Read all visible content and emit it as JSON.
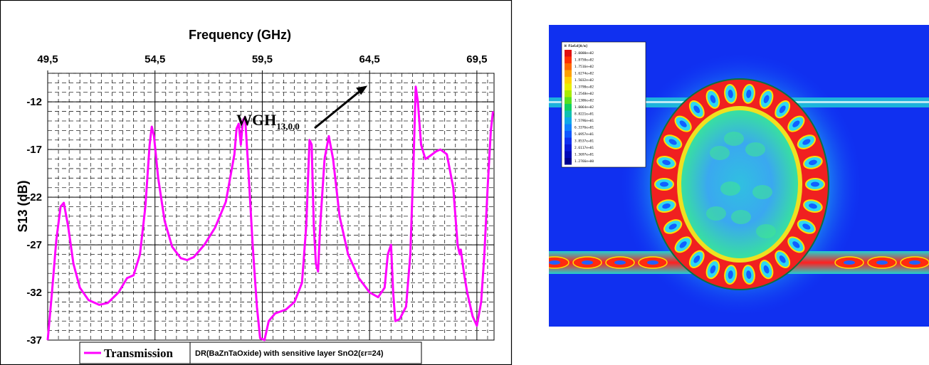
{
  "chart_data": {
    "type": "line",
    "xlabel": "Frequency (GHz)",
    "ylabel": "S13 (dB)",
    "xlim": [
      49.5,
      70.3
    ],
    "ylim": [
      -37,
      -9
    ],
    "x_ticks": [
      "49,5",
      "54,5",
      "59,5",
      "64,5",
      "69,5"
    ],
    "x_tick_values": [
      49.5,
      54.5,
      59.5,
      64.5,
      69.5
    ],
    "y_ticks": [
      "-12",
      "-17",
      "-22",
      "-27",
      "-32",
      "-37"
    ],
    "y_tick_values": [
      -12,
      -17,
      -22,
      -27,
      -32,
      -37
    ],
    "x_axis_position": "top",
    "grid": true,
    "legend": {
      "entry": "Transmission",
      "placement": "bottom-left"
    },
    "caption": "DR(BaZnTaOxide)  with sensitive layer SnO2(εr=24)",
    "annotation": {
      "main": "WGH",
      "sub": "13,0,0",
      "x": 64.4,
      "y": -10.3
    },
    "series": [
      {
        "name": "Transmission",
        "color": "#ff00ff",
        "points": [
          [
            49.5,
            -37
          ],
          [
            49.7,
            -32
          ],
          [
            49.9,
            -26.5
          ],
          [
            50.1,
            -23
          ],
          [
            50.25,
            -22.6
          ],
          [
            50.45,
            -25
          ],
          [
            50.7,
            -29
          ],
          [
            51.0,
            -31.5
          ],
          [
            51.4,
            -32.8
          ],
          [
            51.9,
            -33.3
          ],
          [
            52.3,
            -33.1
          ],
          [
            52.8,
            -32
          ],
          [
            53.2,
            -30.5
          ],
          [
            53.5,
            -30.2
          ],
          [
            53.8,
            -28
          ],
          [
            54.05,
            -23
          ],
          [
            54.25,
            -16.5
          ],
          [
            54.35,
            -14.6
          ],
          [
            54.45,
            -15.5
          ],
          [
            54.65,
            -20
          ],
          [
            54.95,
            -24.5
          ],
          [
            55.3,
            -27.2
          ],
          [
            55.7,
            -28.4
          ],
          [
            56.0,
            -28.6
          ],
          [
            56.3,
            -28.3
          ],
          [
            56.8,
            -27
          ],
          [
            57.3,
            -25.2
          ],
          [
            57.8,
            -22.5
          ],
          [
            58.2,
            -17.5
          ],
          [
            58.3,
            -14.8
          ],
          [
            58.4,
            -14.3
          ],
          [
            58.5,
            -16.5
          ],
          [
            58.6,
            -13.9
          ],
          [
            58.7,
            -13.6
          ],
          [
            58.85,
            -19
          ],
          [
            59.05,
            -27
          ],
          [
            59.25,
            -33.5
          ],
          [
            59.4,
            -36.8
          ],
          [
            59.6,
            -37.5
          ],
          [
            59.8,
            -35
          ],
          [
            60.1,
            -34.2
          ],
          [
            60.6,
            -33.8
          ],
          [
            61.0,
            -33
          ],
          [
            61.35,
            -31
          ],
          [
            61.55,
            -25
          ],
          [
            61.7,
            -16
          ],
          [
            61.8,
            -16.5
          ],
          [
            61.9,
            -25
          ],
          [
            62.0,
            -29
          ],
          [
            62.1,
            -29.8
          ],
          [
            62.2,
            -25
          ],
          [
            62.4,
            -18
          ],
          [
            62.6,
            -15.6
          ],
          [
            62.8,
            -18
          ],
          [
            63.1,
            -24
          ],
          [
            63.5,
            -28
          ],
          [
            64.0,
            -30.5
          ],
          [
            64.5,
            -32
          ],
          [
            64.9,
            -32.5
          ],
          [
            65.2,
            -31.5
          ],
          [
            65.35,
            -28
          ],
          [
            65.5,
            -27
          ],
          [
            65.6,
            -32
          ],
          [
            65.7,
            -35
          ],
          [
            65.9,
            -34.8
          ],
          [
            66.2,
            -33.5
          ],
          [
            66.4,
            -28
          ],
          [
            66.55,
            -18
          ],
          [
            66.65,
            -10.4
          ],
          [
            66.75,
            -12
          ],
          [
            66.9,
            -16.5
          ],
          [
            67.1,
            -18
          ],
          [
            67.3,
            -17.7
          ],
          [
            67.6,
            -17.2
          ],
          [
            67.8,
            -17
          ],
          [
            68.1,
            -17.5
          ],
          [
            68.4,
            -21
          ],
          [
            68.6,
            -27
          ],
          [
            68.7,
            -28
          ],
          [
            68.75,
            -27.5
          ],
          [
            68.9,
            -30
          ],
          [
            69.05,
            -32
          ],
          [
            69.3,
            -34.5
          ],
          [
            69.5,
            -35.5
          ],
          [
            69.7,
            -33
          ],
          [
            69.85,
            -28
          ],
          [
            70.0,
            -21
          ],
          [
            70.15,
            -15
          ],
          [
            70.25,
            -13
          ]
        ]
      }
    ]
  },
  "field_panel": {
    "colorbar_title": "H Field[A/m]",
    "colorbar_values": [
      "2.0000e+02",
      "1.8750e+02",
      "1.7516e+02",
      "1.6274e+02",
      "1.5032e+02",
      "1.3790e+02",
      "1.2548e+02",
      "1.1306e+02",
      "1.0064e+02",
      "8.8221e+01",
      "7.5796e+01",
      "6.3376e+01",
      "5.0957e+01",
      "3.8537e+01",
      "2.6117e+01",
      "1.3697e+01",
      "1.2766e+00"
    ],
    "colorbar_colors": [
      "#e01010",
      "#ff3000",
      "#ff6a00",
      "#ffa000",
      "#ffd000",
      "#e8f000",
      "#a8ec00",
      "#58e020",
      "#10d060",
      "#10c0b0",
      "#10a8e8",
      "#1080ff",
      "#1058ff",
      "#1030f0",
      "#0818d8",
      "#0008b8",
      "#000090"
    ]
  }
}
